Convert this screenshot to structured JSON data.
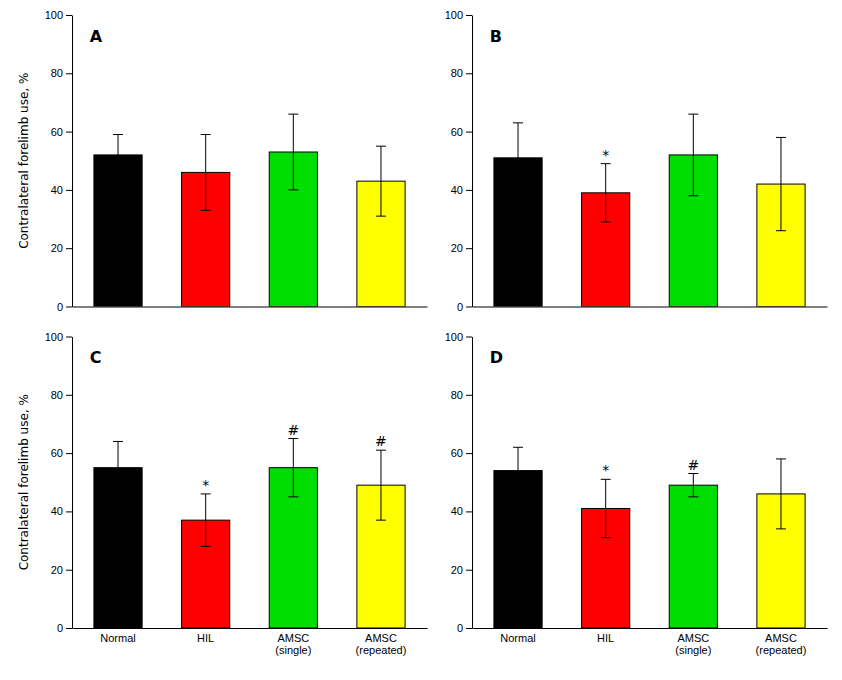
{
  "chart_data": [
    {
      "type": "bar",
      "title": "A",
      "categories": [
        null,
        null,
        null,
        null
      ],
      "values": [
        52,
        46,
        53,
        43
      ],
      "errors": [
        7,
        13,
        13,
        12
      ],
      "colors": [
        "#000000",
        "#ff0000",
        "#00dd00",
        "#ffff00"
      ],
      "ylabel": "Contralateral forelimb use, %",
      "ylim": [
        0,
        100
      ],
      "yticks": [
        0,
        20,
        40,
        60,
        80,
        100
      ],
      "grid": false
    },
    {
      "type": "bar",
      "title": "B",
      "categories": [
        null,
        null,
        null,
        null
      ],
      "values": [
        51,
        39,
        52,
        42
      ],
      "errors": [
        12,
        10,
        14,
        16
      ],
      "annotations": [
        null,
        "*",
        null,
        null
      ],
      "colors": [
        "#000000",
        "#ff0000",
        "#00dd00",
        "#ffff00"
      ],
      "ylim": [
        0,
        100
      ],
      "yticks": [
        0,
        20,
        40,
        60,
        80,
        100
      ],
      "grid": false
    },
    {
      "type": "bar",
      "title": "C",
      "categories": [
        "Normal",
        "HIL",
        "AMSC\n(single)",
        "AMSC\n(repeated)"
      ],
      "values": [
        55,
        37,
        55,
        49
      ],
      "errors": [
        9,
        9,
        10,
        12
      ],
      "annotations": [
        null,
        "*",
        "#",
        "#"
      ],
      "colors": [
        "#000000",
        "#ff0000",
        "#00dd00",
        "#ffff00"
      ],
      "ylabel": "Contralateral forelimb use, %",
      "ylim": [
        0,
        100
      ],
      "yticks": [
        0,
        20,
        40,
        60,
        80,
        100
      ],
      "grid": false
    },
    {
      "type": "bar",
      "title": "D",
      "categories": [
        "Normal",
        "HIL",
        "AMSC\n(single)",
        "AMSC\n(repeated)"
      ],
      "values": [
        54,
        41,
        49,
        46
      ],
      "errors": [
        8,
        10,
        4,
        12
      ],
      "annotations": [
        null,
        "*",
        "#",
        null
      ],
      "colors": [
        "#000000",
        "#ff0000",
        "#00dd00",
        "#ffff00"
      ],
      "ylim": [
        0,
        100
      ],
      "yticks": [
        0,
        20,
        40,
        60,
        80,
        100
      ],
      "grid": false
    }
  ]
}
